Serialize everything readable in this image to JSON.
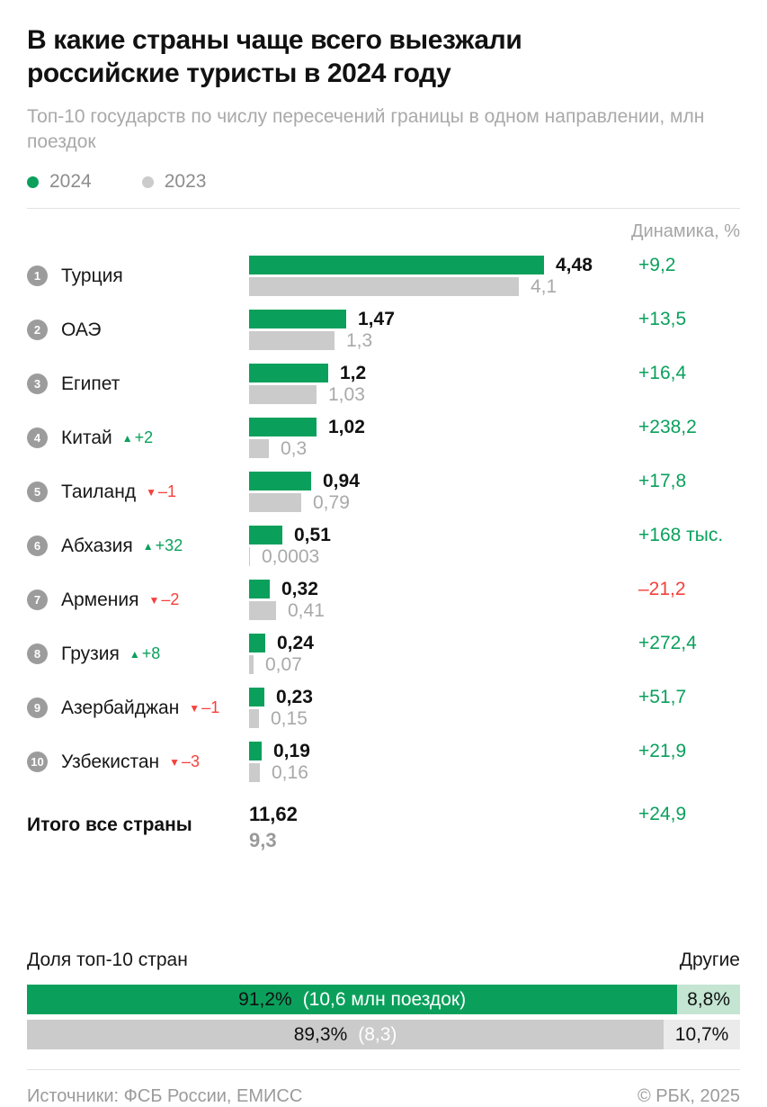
{
  "meta": {
    "title_line1": "В какие страны чаще всего выезжали",
    "title_line2": "российские туристы в 2024 году",
    "subtitle": "Топ-10 государств по числу пересечений границы в одном направлении, млн поездок",
    "legend": [
      {
        "label": "2024",
        "color": "#0aa05c"
      },
      {
        "label": "2023",
        "color": "#cbcbcb"
      }
    ],
    "column_header": "Динамика, %"
  },
  "colors": {
    "green": "#0aa05c",
    "light_green": "#c3e5d2",
    "gray_bar": "#cbcbcb",
    "light_gray": "#ebebeb",
    "red": "#f4413c",
    "gray_text": "#a9a9a9"
  },
  "chart_data": {
    "type": "bar",
    "orientation": "horizontal",
    "unit": "млн поездок",
    "title": "В какие страны чаще всего выезжали российские туристы в 2024 году",
    "subtitle": "Топ-10 государств по числу пересечений границы в одном направлении, млн поездок",
    "categories": [
      "Турция",
      "ОАЭ",
      "Египет",
      "Китай",
      "Таиланд",
      "Абхазия",
      "Армения",
      "Грузия",
      "Азербайджан",
      "Узбекистан"
    ],
    "series": [
      {
        "name": "2024",
        "values": [
          4.48,
          1.47,
          1.2,
          1.02,
          0.94,
          0.51,
          0.32,
          0.24,
          0.23,
          0.19
        ]
      },
      {
        "name": "2023",
        "values": [
          4.1,
          1.3,
          1.03,
          0.3,
          0.79,
          0.0003,
          0.41,
          0.07,
          0.15,
          0.16
        ]
      }
    ],
    "rows": [
      {
        "rank": "1",
        "country": "Турция",
        "rank_change": null,
        "n2024": 4.48,
        "n2023": 4.1,
        "v2024": "4,48",
        "v2023": "4,1",
        "dynamic": "+9,2",
        "trend": "up"
      },
      {
        "rank": "2",
        "country": "ОАЭ",
        "rank_change": null,
        "n2024": 1.47,
        "n2023": 1.3,
        "v2024": "1,47",
        "v2023": "1,3",
        "dynamic": "+13,5",
        "trend": "up"
      },
      {
        "rank": "3",
        "country": "Египет",
        "rank_change": null,
        "n2024": 1.2,
        "n2023": 1.03,
        "v2024": "1,2",
        "v2023": "1,03",
        "dynamic": "+16,4",
        "trend": "up"
      },
      {
        "rank": "4",
        "country": "Китай",
        "rank_change": {
          "dir": "up",
          "text": "+2"
        },
        "n2024": 1.02,
        "n2023": 0.3,
        "v2024": "1,02",
        "v2023": "0,3",
        "dynamic": "+238,2",
        "trend": "up"
      },
      {
        "rank": "5",
        "country": "Таиланд",
        "rank_change": {
          "dir": "down",
          "text": "–1"
        },
        "n2024": 0.94,
        "n2023": 0.79,
        "v2024": "0,94",
        "v2023": "0,79",
        "dynamic": "+17,8",
        "trend": "up"
      },
      {
        "rank": "6",
        "country": "Абхазия",
        "rank_change": {
          "dir": "up",
          "text": "+32"
        },
        "n2024": 0.51,
        "n2023": 0.0003,
        "v2024": "0,51",
        "v2023": "0,0003",
        "dynamic": "+168 тыс.",
        "trend": "up"
      },
      {
        "rank": "7",
        "country": "Армения",
        "rank_change": {
          "dir": "down",
          "text": "–2"
        },
        "n2024": 0.32,
        "n2023": 0.41,
        "v2024": "0,32",
        "v2023": "0,41",
        "dynamic": "–21,2",
        "trend": "down"
      },
      {
        "rank": "8",
        "country": "Грузия",
        "rank_change": {
          "dir": "up",
          "text": "+8"
        },
        "n2024": 0.24,
        "n2023": 0.07,
        "v2024": "0,24",
        "v2023": "0,07",
        "dynamic": "+272,4",
        "trend": "up"
      },
      {
        "rank": "9",
        "country": "Азербайджан",
        "rank_change": {
          "dir": "down",
          "text": "–1"
        },
        "n2024": 0.23,
        "n2023": 0.15,
        "v2024": "0,23",
        "v2023": "0,15",
        "dynamic": "+51,7",
        "trend": "up"
      },
      {
        "rank": "10",
        "country": "Узбекистан",
        "rank_change": {
          "dir": "down",
          "text": "–3"
        },
        "n2024": 0.19,
        "n2023": 0.16,
        "v2024": "0,19",
        "v2023": "0,16",
        "dynamic": "+21,9",
        "trend": "up"
      }
    ],
    "total": {
      "label": "Итого все страны",
      "v2024": "11,62",
      "v2023": "9,3",
      "dynamic": "+24,9"
    },
    "share": {
      "title": "Доля топ-10 стран",
      "others_label": "Другие",
      "bars": [
        {
          "year": "2024",
          "main_num": 91.2,
          "main_pct": "91,2%",
          "main_note": "(10,6 млн поездок)",
          "other_pct": "8,8%"
        },
        {
          "year": "2023",
          "main_num": 89.3,
          "main_pct": "89,3%",
          "main_note": "(8,3)",
          "other_pct": "10,7%"
        }
      ]
    }
  },
  "footer": {
    "sources": "Источники: ФСБ России, ЕМИСС",
    "copyright": "© РБК, 2025"
  }
}
